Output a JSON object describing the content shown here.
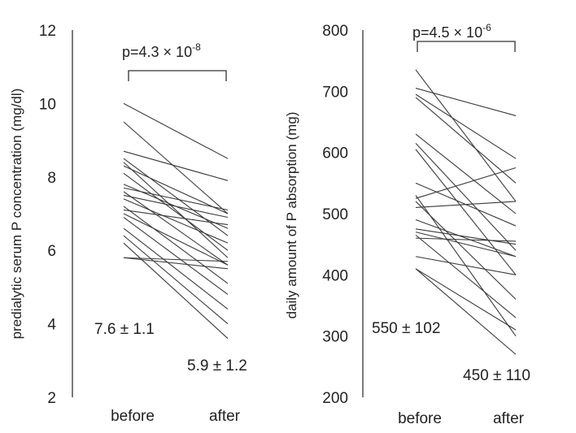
{
  "chart_data": [
    {
      "type": "line",
      "ylabel": "predialytic serum P concentration (mg/dl)",
      "ylim": [
        2,
        12
      ],
      "yticks": [
        "2",
        "4",
        "6",
        "8",
        "10",
        "12"
      ],
      "categories": [
        "before",
        "after"
      ],
      "pvalue": {
        "prefix": "p=4.3 × 10",
        "exponent": "-8"
      },
      "annotation_before": "7.6 ± 1.1",
      "annotation_after": "5.9 ± 1.2",
      "series": [
        {
          "values": [
            10.0,
            8.5
          ]
        },
        {
          "values": [
            9.5,
            7.0
          ]
        },
        {
          "values": [
            8.7,
            7.9
          ]
        },
        {
          "values": [
            8.5,
            6.4
          ]
        },
        {
          "values": [
            8.4,
            5.8
          ]
        },
        {
          "values": [
            8.3,
            7.0
          ]
        },
        {
          "values": [
            8.1,
            6.0
          ]
        },
        {
          "values": [
            7.8,
            6.6
          ]
        },
        {
          "values": [
            7.7,
            7.1
          ]
        },
        {
          "values": [
            7.6,
            5.6
          ]
        },
        {
          "values": [
            7.5,
            6.9
          ]
        },
        {
          "values": [
            7.4,
            6.2
          ]
        },
        {
          "values": [
            7.2,
            5.1
          ]
        },
        {
          "values": [
            7.1,
            6.7
          ]
        },
        {
          "values": [
            7.0,
            5.6
          ]
        },
        {
          "values": [
            6.9,
            4.8
          ]
        },
        {
          "values": [
            6.6,
            4.4
          ]
        },
        {
          "values": [
            6.4,
            4.0
          ]
        },
        {
          "values": [
            6.2,
            3.6
          ]
        },
        {
          "values": [
            5.8,
            5.7
          ]
        },
        {
          "values": [
            5.8,
            5.5
          ]
        }
      ]
    },
    {
      "type": "line",
      "ylabel": "daily amount of P absorption (mg)",
      "ylim": [
        200,
        800
      ],
      "yticks": [
        "200",
        "300",
        "400",
        "500",
        "600",
        "700",
        "800"
      ],
      "categories": [
        "before",
        "after"
      ],
      "pvalue": {
        "prefix": "p=4.5 × 10",
        "exponent": "-6"
      },
      "annotation_before": "550 ± 102",
      "annotation_after": "450  ±  110",
      "series": [
        {
          "values": [
            735,
            520
          ]
        },
        {
          "values": [
            705,
            660
          ]
        },
        {
          "values": [
            695,
            590
          ]
        },
        {
          "values": [
            690,
            550
          ]
        },
        {
          "values": [
            630,
            500
          ]
        },
        {
          "values": [
            615,
            440
          ]
        },
        {
          "values": [
            605,
            400
          ]
        },
        {
          "values": [
            550,
            480
          ]
        },
        {
          "values": [
            525,
            575
          ]
        },
        {
          "values": [
            520,
            360
          ]
        },
        {
          "values": [
            510,
            520
          ]
        },
        {
          "values": [
            490,
            430
          ]
        },
        {
          "values": [
            475,
            450
          ]
        },
        {
          "values": [
            470,
            430
          ]
        },
        {
          "values": [
            465,
            330
          ]
        },
        {
          "values": [
            430,
            400
          ]
        },
        {
          "values": [
            410,
            310
          ]
        },
        {
          "values": [
            410,
            270
          ]
        },
        {
          "values": [
            530,
            300
          ]
        },
        {
          "values": [
            460,
            455
          ]
        }
      ]
    }
  ]
}
